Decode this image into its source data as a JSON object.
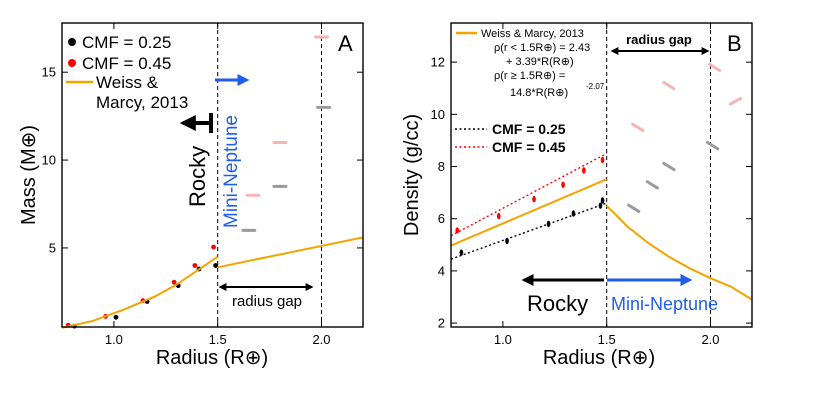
{
  "chart_data": [
    {
      "type": "scatter",
      "panel_label": "A",
      "xlabel": "Radius (R⊕)",
      "ylabel": "Mass (M⊕)",
      "xlim": [
        0.75,
        2.2
      ],
      "ylim": [
        0.5,
        17.8
      ],
      "xticks": [
        1.0,
        1.5,
        2.0
      ],
      "xtick_labels": [
        "1.0",
        "1.5",
        "2.0"
      ],
      "yticks": [
        5,
        10,
        15
      ],
      "ytick_labels": [
        "5",
        "10",
        "15"
      ],
      "grid": false,
      "legend_position": "top-left",
      "legend": [
        "CMF = 0.25",
        "CMF = 0.45",
        "Weiss & Marcy, 2013"
      ],
      "legend_weiss_lines": [
        "Weiss &",
        "Marcy, 2013"
      ],
      "vlines": [
        1.5,
        2.0
      ],
      "rocky_label": "Rocky",
      "mini_neptune_label": "Mini-Neptune",
      "radius_gap_label": "radius gap",
      "colors": {
        "cmf025": "#000000",
        "cmf045": "#ff0000",
        "weiss": "#f5a300",
        "rocky_arrow": "#000000",
        "mini_arrow": "#1f5fe8"
      },
      "series": [
        {
          "name": "CMF = 0.25",
          "points": [
            [
              0.81,
              0.55
            ],
            [
              1.01,
              1.05
            ],
            [
              1.16,
              1.95
            ],
            [
              1.31,
              2.85
            ],
            [
              1.41,
              3.8
            ],
            [
              1.49,
              4.0
            ]
          ]
        },
        {
          "name": "CMF = 0.45",
          "points": [
            [
              0.78,
              0.6
            ],
            [
              0.96,
              1.1
            ],
            [
              1.14,
              2.0
            ],
            [
              1.29,
              3.05
            ],
            [
              1.39,
              4.0
            ],
            [
              1.48,
              5.05
            ]
          ]
        },
        {
          "name": "Weiss & Marcy, 2013",
          "style": "line",
          "segments": [
            [
              [
                0.75,
                0.45
              ],
              [
                0.9,
                0.85
              ],
              [
                1.05,
                1.5
              ],
              [
                1.2,
                2.25
              ],
              [
                1.3,
                2.9
              ],
              [
                1.4,
                3.7
              ],
              [
                1.5,
                4.5
              ]
            ],
            [
              [
                1.5,
                3.9
              ],
              [
                2.2,
                5.6
              ]
            ]
          ]
        },
        {
          "name": "Mini-Neptune (CMF 0.25)",
          "style": "dash",
          "color": "#9a9a9a",
          "points": [
            [
              1.65,
              6.0
            ],
            [
              1.8,
              8.5
            ],
            [
              2.01,
              13.0
            ]
          ]
        },
        {
          "name": "Mini-Neptune (CMF 0.45)",
          "style": "dash",
          "color": "#f4b5b5",
          "points": [
            [
              1.67,
              8.0
            ],
            [
              1.8,
              11.0
            ],
            [
              2.0,
              17.0
            ]
          ]
        }
      ]
    },
    {
      "type": "scatter",
      "panel_label": "B",
      "xlabel": "Radius (R⊕)",
      "ylabel": "Density (g/cc)",
      "xlim": [
        0.75,
        2.2
      ],
      "ylim": [
        1.85,
        13.5
      ],
      "xticks": [
        1.0,
        1.5,
        2.0
      ],
      "xtick_labels": [
        "1.0",
        "1.5",
        "2.0"
      ],
      "yticks": [
        2,
        4,
        6,
        8,
        10,
        12
      ],
      "ytick_labels": [
        "2",
        "4",
        "6",
        "8",
        "10",
        "12"
      ],
      "grid": false,
      "legend_position": "top-left",
      "legend_weiss": "Weiss & Marcy, 2013",
      "formula_lines": [
        "ρ(r < 1.5R⊕) = 2.43",
        "+ 3.39*R(R⊕)",
        "ρ(r ≥ 1.5R⊕) =",
        "14.8*R(R⊕)",
        "-2.07"
      ],
      "legend_dotted": [
        "CMF = 0.25",
        "CMF = 0.45"
      ],
      "vlines": [
        1.5,
        2.0
      ],
      "rocky_label": "Rocky",
      "mini_neptune_label": "Mini-Neptune",
      "radius_gap_label": "radius gap",
      "series": [
        {
          "name": "CMF = 0.25",
          "points": [
            [
              0.8,
              4.7
            ],
            [
              1.02,
              5.15
            ],
            [
              1.22,
              5.8
            ],
            [
              1.34,
              6.2
            ],
            [
              1.47,
              6.5
            ],
            [
              1.48,
              6.7
            ]
          ],
          "fit_line": [
            [
              0.75,
              4.45
            ],
            [
              1.5,
              6.6
            ]
          ]
        },
        {
          "name": "CMF = 0.45",
          "points": [
            [
              0.78,
              5.55
            ],
            [
              0.98,
              6.1
            ],
            [
              1.15,
              6.75
            ],
            [
              1.29,
              7.3
            ],
            [
              1.39,
              7.85
            ],
            [
              1.48,
              8.25
            ]
          ],
          "fit_line": [
            [
              0.75,
              5.35
            ],
            [
              1.5,
              8.5
            ]
          ]
        },
        {
          "name": "Weiss & Marcy, 2013",
          "style": "line",
          "segments": [
            [
              [
                0.75,
                4.97
              ],
              [
                1.5,
                7.515
              ]
            ],
            [
              [
                1.5,
                6.5
              ],
              [
                1.6,
                5.7
              ],
              [
                1.7,
                5.07
              ],
              [
                1.8,
                4.54
              ],
              [
                1.9,
                4.1
              ],
              [
                2.0,
                3.72
              ],
              [
                2.1,
                3.39
              ],
              [
                2.2,
                2.9
              ]
            ]
          ]
        },
        {
          "name": "Mini-Neptune (CMF 0.25)",
          "style": "dash",
          "color": "#9a9a9a",
          "points": [
            [
              1.63,
              6.4
            ],
            [
              1.72,
              7.3
            ],
            [
              1.8,
              8.0
            ],
            [
              2.01,
              8.8
            ]
          ]
        },
        {
          "name": "Mini-Neptune (CMF 0.45)",
          "style": "dash",
          "color": "#f4b5b5",
          "points": [
            [
              1.65,
              9.5
            ],
            [
              1.8,
              11.1
            ],
            [
              2.02,
              11.8
            ],
            [
              2.12,
              10.5
            ]
          ]
        }
      ]
    }
  ]
}
